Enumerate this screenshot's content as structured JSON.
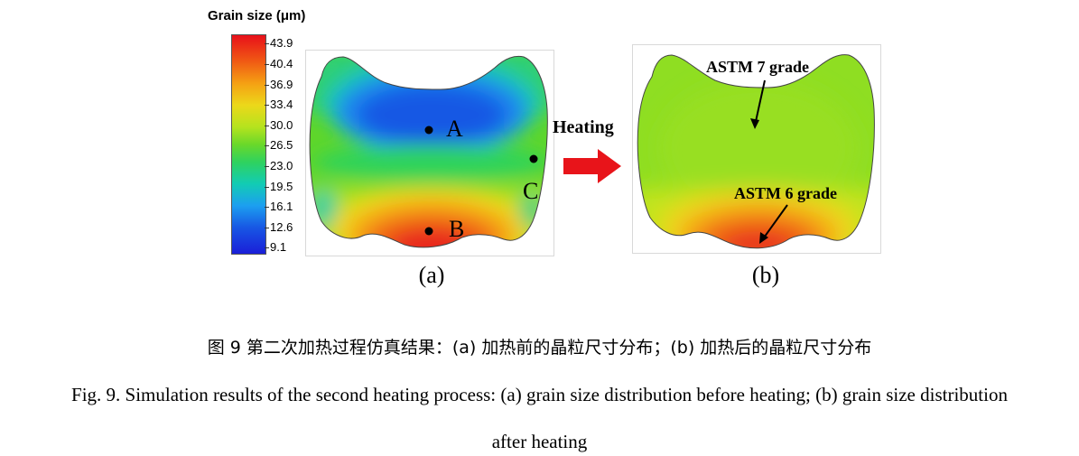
{
  "legend": {
    "title": "Grain size (μm)",
    "ticks": [
      "43.9",
      "40.4",
      "36.9",
      "33.4",
      "30.0",
      "26.5",
      "23.0",
      "19.5",
      "16.1",
      "12.6",
      "9.1"
    ]
  },
  "panel_a": {
    "points": [
      "A",
      "B",
      "C"
    ],
    "sublabel": "(a)"
  },
  "arrow": {
    "label": "Heating",
    "color": "#e8141a"
  },
  "panel_b": {
    "annotation_top": "ASTM 7 grade",
    "annotation_bottom": "ASTM 6 grade",
    "sublabel": "(b)"
  },
  "caption": {
    "chinese": "图 9  第二次加热过程仿真结果：(a)  加热前的晶粒尺寸分布；(b)  加热后的晶粒尺寸分布",
    "english_line1": "Fig. 9. Simulation results of the second heating process: (a) grain size distribution before heating; (b) grain size distribution",
    "english_line2": "after heating"
  }
}
